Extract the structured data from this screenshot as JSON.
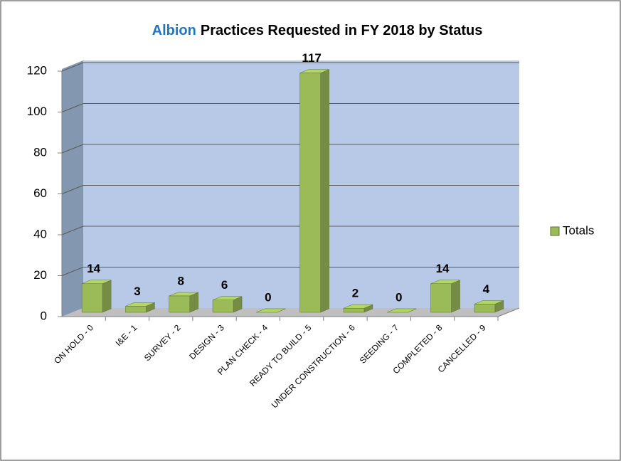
{
  "chart_data": {
    "type": "bar3d",
    "title": [
      {
        "text": "Albion",
        "color": "#1f77c4"
      },
      {
        "text": "Practices Requested in FY 2018 by Status",
        "color": "#000000"
      }
    ],
    "categories": [
      "ON HOLD - 0",
      "I&E - 1",
      "SURVEY - 2",
      "DESIGN - 3",
      "PLAN CHECK - 4",
      "READY TO BUILD - 5",
      "UNDER CONSTRUCTION - 6",
      "SEEDING - 7",
      "COMPLETED - 8",
      "CANCELLED - 9"
    ],
    "series": [
      {
        "name": "Totals",
        "color": "#9bbb59",
        "values": [
          14,
          3,
          8,
          6,
          0,
          117,
          2,
          0,
          14,
          4
        ]
      }
    ],
    "ylim": [
      0,
      120
    ],
    "yticks": [
      0,
      20,
      40,
      60,
      80,
      100,
      120
    ],
    "grid": true,
    "legend": "right"
  }
}
